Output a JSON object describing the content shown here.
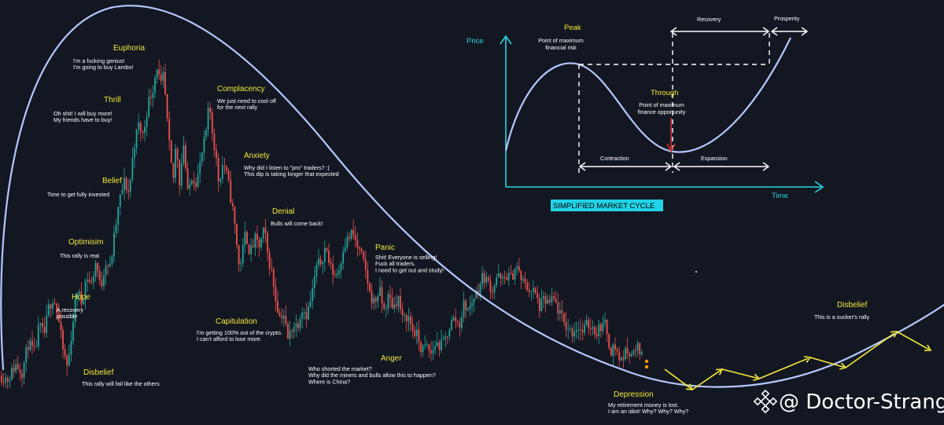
{
  "colors": {
    "background": "#131722",
    "up": "#26a69a",
    "down": "#ef5350",
    "cycle_curve": "#b3c8ff",
    "phase_label": "#f5e83a",
    "inset_axis": "#2ad4e0",
    "projection_arrow": "#f5e83a",
    "trough_arrow": "#e53935"
  },
  "chart_data": {
    "type": "candlestick",
    "phases": [
      {
        "name": "Disbelief",
        "text": [
          "This rally will fail like the others"
        ]
      },
      {
        "name": "Hope",
        "text": [
          "A recovery",
          "possible"
        ]
      },
      {
        "name": "Optimisim",
        "text": [
          "This rally is real"
        ]
      },
      {
        "name": "Belief",
        "text": [
          "Time to get fully invested"
        ]
      },
      {
        "name": "Thrill",
        "text": [
          "Oh shit! I will buy more!",
          "My friends have to buy!"
        ]
      },
      {
        "name": "Euphoria",
        "text": [
          "I'm a fucking genius!",
          "I'm going to buy Lambo!"
        ]
      },
      {
        "name": "Complacency",
        "text": [
          "We just need to cool off",
          "for the next rally"
        ]
      },
      {
        "name": "Anxiety",
        "text": [
          "Why did I listen to  \"pro\" traders? :(",
          "This dip is taking longer that expected"
        ]
      },
      {
        "name": "Denial",
        "text": [
          "Bulls will come back!"
        ]
      },
      {
        "name": "Panic",
        "text": [
          "Shit! Everyone is selling!",
          "Fuck all traders.",
          "I need to get out and study!"
        ]
      },
      {
        "name": "Capitulation",
        "text": [
          "I'm getting 100% out of the crypto.",
          "I can't afford to lose more."
        ]
      },
      {
        "name": "Anger",
        "text": [
          "Who shorted the market?",
          "Why did the miners and bulls allow this to happen?",
          "Where is China?"
        ]
      },
      {
        "name": "Depression",
        "text": [
          "My retirement money is lost.",
          "I am an idiot! Why? Why? Why?"
        ]
      },
      {
        "name": "Disbelief",
        "text": [
          "This is a sucker's rally"
        ]
      }
    ],
    "price_path": [
      [
        0,
        0.06
      ],
      [
        10,
        0.05
      ],
      [
        20,
        0.09
      ],
      [
        28,
        0.07
      ],
      [
        36,
        0.15
      ],
      [
        44,
        0.12
      ],
      [
        50,
        0.2
      ],
      [
        56,
        0.17
      ],
      [
        62,
        0.25
      ],
      [
        68,
        0.28
      ],
      [
        74,
        0.22
      ],
      [
        80,
        0.13
      ],
      [
        86,
        0.08
      ],
      [
        92,
        0.2
      ],
      [
        98,
        0.3
      ],
      [
        104,
        0.26
      ],
      [
        110,
        0.34
      ],
      [
        116,
        0.31
      ],
      [
        122,
        0.38
      ],
      [
        128,
        0.3
      ],
      [
        134,
        0.38
      ],
      [
        140,
        0.36
      ],
      [
        146,
        0.46
      ],
      [
        152,
        0.55
      ],
      [
        158,
        0.6
      ],
      [
        164,
        0.57
      ],
      [
        170,
        0.7
      ],
      [
        176,
        0.76
      ],
      [
        182,
        0.73
      ],
      [
        188,
        0.82
      ],
      [
        194,
        0.86
      ],
      [
        200,
        0.93
      ],
      [
        204,
        0.86
      ],
      [
        208,
        0.9
      ],
      [
        212,
        0.78
      ],
      [
        216,
        0.68
      ],
      [
        220,
        0.6
      ],
      [
        224,
        0.72
      ],
      [
        228,
        0.6
      ],
      [
        234,
        0.72
      ],
      [
        238,
        0.56
      ],
      [
        244,
        0.62
      ],
      [
        250,
        0.6
      ],
      [
        256,
        0.67
      ],
      [
        262,
        0.74
      ],
      [
        266,
        0.82
      ],
      [
        270,
        0.74
      ],
      [
        274,
        0.68
      ],
      [
        278,
        0.6
      ],
      [
        284,
        0.66
      ],
      [
        290,
        0.6
      ],
      [
        296,
        0.52
      ],
      [
        300,
        0.45
      ],
      [
        304,
        0.36
      ],
      [
        308,
        0.4
      ],
      [
        312,
        0.46
      ],
      [
        318,
        0.4
      ],
      [
        324,
        0.44
      ],
      [
        330,
        0.42
      ],
      [
        336,
        0.47
      ],
      [
        340,
        0.4
      ],
      [
        346,
        0.34
      ],
      [
        350,
        0.28
      ],
      [
        356,
        0.22
      ],
      [
        360,
        0.24
      ],
      [
        366,
        0.16
      ],
      [
        372,
        0.2
      ],
      [
        378,
        0.2
      ],
      [
        384,
        0.25
      ],
      [
        390,
        0.23
      ],
      [
        396,
        0.28
      ],
      [
        402,
        0.36
      ],
      [
        408,
        0.38
      ],
      [
        414,
        0.42
      ],
      [
        420,
        0.36
      ],
      [
        426,
        0.34
      ],
      [
        432,
        0.36
      ],
      [
        436,
        0.42
      ],
      [
        442,
        0.44
      ],
      [
        448,
        0.46
      ],
      [
        454,
        0.42
      ],
      [
        460,
        0.39
      ],
      [
        466,
        0.34
      ],
      [
        470,
        0.29
      ],
      [
        476,
        0.26
      ],
      [
        482,
        0.3
      ],
      [
        488,
        0.24
      ],
      [
        494,
        0.28
      ],
      [
        500,
        0.25
      ],
      [
        506,
        0.28
      ],
      [
        512,
        0.21
      ],
      [
        518,
        0.23
      ],
      [
        524,
        0.19
      ],
      [
        530,
        0.17
      ],
      [
        536,
        0.13
      ],
      [
        542,
        0.14
      ],
      [
        548,
        0.12
      ],
      [
        554,
        0.15
      ],
      [
        560,
        0.14
      ],
      [
        566,
        0.16
      ],
      [
        572,
        0.2
      ],
      [
        578,
        0.22
      ],
      [
        584,
        0.2
      ],
      [
        590,
        0.26
      ],
      [
        596,
        0.24
      ],
      [
        602,
        0.28
      ],
      [
        608,
        0.3
      ],
      [
        614,
        0.34
      ],
      [
        620,
        0.32
      ],
      [
        626,
        0.3
      ],
      [
        632,
        0.34
      ],
      [
        638,
        0.32
      ],
      [
        644,
        0.34
      ],
      [
        650,
        0.33
      ],
      [
        656,
        0.37
      ],
      [
        662,
        0.33
      ],
      [
        668,
        0.31
      ],
      [
        674,
        0.3
      ],
      [
        680,
        0.29
      ],
      [
        686,
        0.25
      ],
      [
        692,
        0.27
      ],
      [
        698,
        0.26
      ],
      [
        704,
        0.27
      ],
      [
        710,
        0.24
      ],
      [
        716,
        0.21
      ],
      [
        722,
        0.19
      ],
      [
        728,
        0.18
      ],
      [
        734,
        0.2
      ],
      [
        740,
        0.18
      ],
      [
        746,
        0.2
      ],
      [
        752,
        0.2
      ],
      [
        758,
        0.18
      ],
      [
        764,
        0.2
      ],
      [
        770,
        0.2
      ],
      [
        776,
        0.13
      ],
      [
        782,
        0.14
      ],
      [
        788,
        0.1
      ],
      [
        794,
        0.12
      ],
      [
        800,
        0.13
      ],
      [
        806,
        0.12
      ],
      [
        812,
        0.14
      ],
      [
        818,
        0.1
      ]
    ],
    "inset": {
      "title": "SIMPLIFIED MARKET CYCLE",
      "y_axis": "Price",
      "x_axis": "Time",
      "peak": "Peak",
      "peak_text": [
        "Point of maximum",
        "financial risk"
      ],
      "trough": "Through",
      "trough_text": [
        "Point of maximum",
        "finance opportunity"
      ],
      "contraction": "Contraction",
      "expansion": "Expansion",
      "recovery": "Recovery",
      "prosperity": "Prosperity"
    }
  },
  "watermark": "@ Doctor-Strange"
}
